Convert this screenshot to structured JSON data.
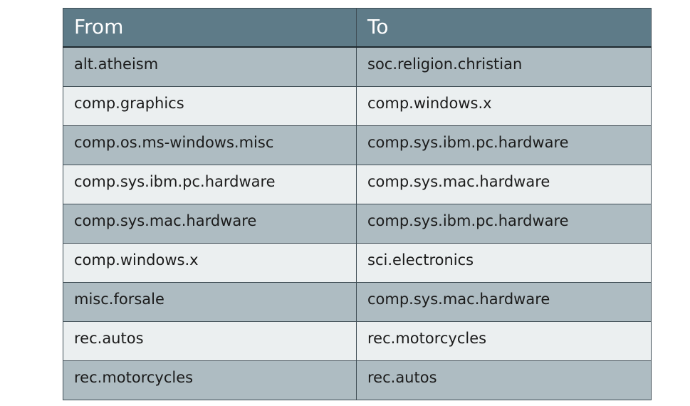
{
  "table": {
    "headers": [
      "From",
      "To"
    ],
    "rows": [
      [
        "alt.atheism",
        "soc.religion.christian"
      ],
      [
        "comp.graphics",
        "comp.windows.x"
      ],
      [
        "comp.os.ms-windows.misc",
        "comp.sys.ibm.pc.hardware"
      ],
      [
        "comp.sys.ibm.pc.hardware",
        "comp.sys.mac.hardware"
      ],
      [
        "comp.sys.mac.hardware",
        "comp.sys.ibm.pc.hardware"
      ],
      [
        "comp.windows.x",
        "sci.electronics"
      ],
      [
        "misc.forsale",
        "comp.sys.mac.hardware"
      ],
      [
        "rec.autos",
        "rec.motorcycles"
      ],
      [
        "rec.motorcycles",
        "rec.autos"
      ]
    ]
  },
  "colors": {
    "header_bg": "#5e7b88",
    "row_dark": "#aebcc2",
    "row_light": "#ebeff0",
    "border": "#3f4d55"
  }
}
